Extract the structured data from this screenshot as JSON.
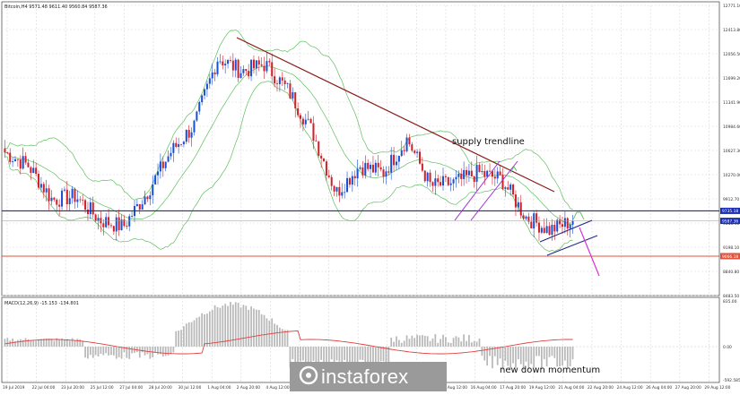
{
  "header": {
    "symbol_line": "Bitcoin,H4  9571.48 9611.40 9560.84 9587.36"
  },
  "indicator_header": "MACD(12,26,9) -15.153 -134.801",
  "price_axis_labels": [
    "12771.10",
    "12413.80",
    "12056.50",
    "11699.20",
    "11341.90",
    "10984.60",
    "10627.30",
    "10270.00",
    "9912.70",
    "9555.40",
    "9198.10",
    "8840.80",
    "8483.50"
  ],
  "price_axis_marked": [
    {
      "value": "9735.18",
      "color": "#1a2fb3"
    },
    {
      "value": "9587.36",
      "color": "#1a2fb3"
    },
    {
      "value": "9066.18",
      "color": "#e0533a"
    }
  ],
  "macd_axis_labels": [
    "835.00",
    "0.00",
    "-592.585"
  ],
  "time_axis_labels": [
    "19 Jul 2019",
    "22 Jul 04:00",
    "23 Jul 20:00",
    "25 Jul 12:00",
    "27 Jul 04:00",
    "28 Jul 20:00",
    "30 Jul 12:00",
    "1 Aug 04:00",
    "2 Aug 20:00",
    "4 Aug 12:00",
    "6 Aug 04:00",
    "7 Aug 20:00",
    "9 Aug 12:00",
    "11 Aug 04:00",
    "12 Aug 20:00",
    "14 Aug 12:00",
    "16 Aug 04:00",
    "17 Aug 20:00",
    "19 Aug 12:00",
    "21 Aug 04:00",
    "22 Aug 20:00",
    "24 Aug 12:00",
    "26 Aug 04:00",
    "27 Aug 20:00",
    "29 Aug 12:00"
  ],
  "annotations": {
    "supply": "supply trendline",
    "momentum": "new down momentum"
  },
  "logo": "instaforex",
  "colors": {
    "bull": "#1a4fd6",
    "bear": "#d0202a",
    "bands": "#5fbf5f",
    "trendline": "#8b1a1a",
    "hline_blue": "#1a2fb3",
    "hline_orange": "#e0533a",
    "channel_purple": "#9b30d8",
    "channel_navy": "#1b2a8a",
    "arrow_magenta": "#d633d6",
    "macd_signal": "#e04040",
    "macd_hist": "#b8b8b8"
  },
  "chart_data": {
    "type": "candlestick",
    "symbol": "Bitcoin",
    "timeframe": "H4",
    "ylim": [
      8483.5,
      12771.1
    ],
    "period": [
      "19 Jul 2019",
      "30 Aug 2019"
    ],
    "key_levels": [
      9735.18,
      9066.18
    ],
    "last_price": 9587.36,
    "close_path": [
      {
        "t": "19 Jul 2019",
        "close": 10600
      },
      {
        "t": "21 Jul",
        "close": 10400
      },
      {
        "t": "23 Jul",
        "close": 9900
      },
      {
        "t": "25 Jul",
        "close": 9950
      },
      {
        "t": "27 Jul",
        "close": 9600
      },
      {
        "t": "29 Jul",
        "close": 9500
      },
      {
        "t": "31 Jul",
        "close": 10000
      },
      {
        "t": "2 Aug",
        "close": 10600
      },
      {
        "t": "4 Aug",
        "close": 11000
      },
      {
        "t": "6 Aug",
        "close": 12000
      },
      {
        "t": "7 Aug",
        "close": 11800
      },
      {
        "t": "9 Aug",
        "close": 11900
      },
      {
        "t": "11 Aug",
        "close": 11500
      },
      {
        "t": "13 Aug",
        "close": 10900
      },
      {
        "t": "15 Aug",
        "close": 10000
      },
      {
        "t": "16 Aug",
        "close": 10400
      },
      {
        "t": "18 Aug",
        "close": 10300
      },
      {
        "t": "20 Aug",
        "close": 10800
      },
      {
        "t": "22 Aug",
        "close": 10100
      },
      {
        "t": "24 Aug",
        "close": 10150
      },
      {
        "t": "26 Aug",
        "close": 10300
      },
      {
        "t": "27 Aug",
        "close": 10200
      },
      {
        "t": "28 Aug",
        "close": 9650
      },
      {
        "t": "29 Aug",
        "close": 9450
      },
      {
        "t": "30 Aug",
        "close": 9587.36
      }
    ],
    "indicators": [
      "Bollinger Bands",
      "MACD(12,26,9)"
    ],
    "macd": {
      "main": -15.153,
      "signal": -134.801
    }
  }
}
